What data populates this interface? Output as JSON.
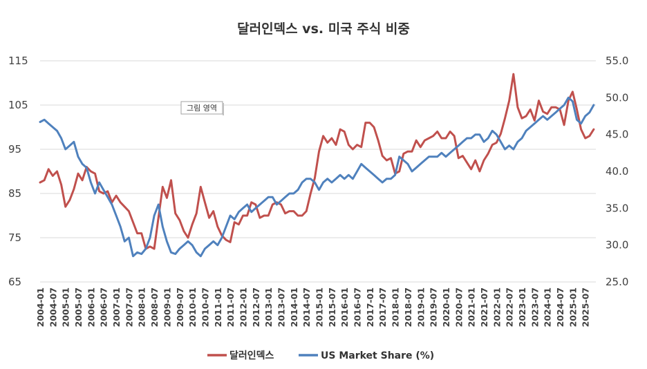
{
  "chart_data": {
    "type": "line",
    "title": "달러인덱스 vs. 미국 주식 비중",
    "tooltip": "그림 영역",
    "left_axis": {
      "ylim": [
        65,
        115
      ],
      "ticks": [
        "115",
        "105",
        "95",
        "85",
        "75",
        "65"
      ]
    },
    "right_axis": {
      "ylim": [
        25,
        55
      ],
      "ticks": [
        "55.0",
        "50.0",
        "45.0",
        "40.0",
        "35.0",
        "30.0",
        "25.0"
      ]
    },
    "x_ticks": [
      "2004-01",
      "2004-07",
      "2005-01",
      "2005-07",
      "2006-01",
      "2006-07",
      "2007-01",
      "2007-07",
      "2008-01",
      "2008-07",
      "2009-01",
      "2009-07",
      "2010-01",
      "2010-07",
      "2011-01",
      "2011-07",
      "2012-01",
      "2012-07",
      "2013-01",
      "2013-07",
      "2014-01",
      "2014-07",
      "2015-01",
      "2015-07",
      "2016-01",
      "2016-07",
      "2017-01",
      "2017-07",
      "2018-01",
      "2018-07",
      "2019-01",
      "2019-07",
      "2020-01",
      "2020-07",
      "2021-01",
      "2021-07",
      "2022-01",
      "2022-07",
      "2023-01",
      "2023-07",
      "2024-01",
      "2024-07",
      "2025-01",
      "2025-07"
    ],
    "grid": true,
    "legend_position": "bottom",
    "series": [
      {
        "name": "달러인덱스",
        "axis": "left",
        "color": "#c0504d",
        "points": [
          [
            "2004-01",
            87.5
          ],
          [
            "2004-03",
            88
          ],
          [
            "2004-05",
            90.5
          ],
          [
            "2004-07",
            89
          ],
          [
            "2004-09",
            90
          ],
          [
            "2004-11",
            87
          ],
          [
            "2005-01",
            82
          ],
          [
            "2005-03",
            83.5
          ],
          [
            "2005-05",
            86
          ],
          [
            "2005-07",
            89.5
          ],
          [
            "2005-09",
            88
          ],
          [
            "2005-11",
            91
          ],
          [
            "2006-01",
            90
          ],
          [
            "2006-03",
            89.5
          ],
          [
            "2006-05",
            85.5
          ],
          [
            "2006-07",
            85
          ],
          [
            "2006-09",
            85.5
          ],
          [
            "2006-11",
            83
          ],
          [
            "2007-01",
            84.5
          ],
          [
            "2007-03",
            83
          ],
          [
            "2007-05",
            82
          ],
          [
            "2007-07",
            81
          ],
          [
            "2007-09",
            78.5
          ],
          [
            "2007-11",
            76
          ],
          [
            "2008-01",
            76
          ],
          [
            "2008-03",
            72.5
          ],
          [
            "2008-05",
            73
          ],
          [
            "2008-07",
            72.5
          ],
          [
            "2008-09",
            79.5
          ],
          [
            "2008-11",
            86.5
          ],
          [
            "2009-01",
            84
          ],
          [
            "2009-03",
            88
          ],
          [
            "2009-05",
            80.5
          ],
          [
            "2009-07",
            79
          ],
          [
            "2009-09",
            76.5
          ],
          [
            "2009-11",
            75
          ],
          [
            "2010-01",
            78
          ],
          [
            "2010-03",
            80.5
          ],
          [
            "2010-05",
            86.5
          ],
          [
            "2010-07",
            83
          ],
          [
            "2010-09",
            79.5
          ],
          [
            "2010-11",
            81
          ],
          [
            "2011-01",
            77.5
          ],
          [
            "2011-03",
            75.5
          ],
          [
            "2011-05",
            74.5
          ],
          [
            "2011-07",
            74
          ],
          [
            "2011-09",
            78.5
          ],
          [
            "2011-11",
            78
          ],
          [
            "2012-01",
            80
          ],
          [
            "2012-03",
            80
          ],
          [
            "2012-05",
            83
          ],
          [
            "2012-07",
            82.5
          ],
          [
            "2012-09",
            79.5
          ],
          [
            "2012-11",
            80
          ],
          [
            "2013-01",
            80
          ],
          [
            "2013-03",
            82.5
          ],
          [
            "2013-05",
            83
          ],
          [
            "2013-07",
            82.5
          ],
          [
            "2013-09",
            80.5
          ],
          [
            "2013-11",
            81
          ],
          [
            "2014-01",
            81
          ],
          [
            "2014-03",
            80
          ],
          [
            "2014-05",
            80
          ],
          [
            "2014-07",
            81
          ],
          [
            "2014-09",
            85
          ],
          [
            "2014-11",
            88.5
          ],
          [
            "2015-01",
            94.5
          ],
          [
            "2015-03",
            98
          ],
          [
            "2015-05",
            96.5
          ],
          [
            "2015-07",
            97.5
          ],
          [
            "2015-09",
            96
          ],
          [
            "2015-11",
            99.5
          ],
          [
            "2016-01",
            99
          ],
          [
            "2016-03",
            96
          ],
          [
            "2016-05",
            95
          ],
          [
            "2016-07",
            96
          ],
          [
            "2016-09",
            95.5
          ],
          [
            "2016-11",
            101
          ],
          [
            "2017-01",
            101
          ],
          [
            "2017-03",
            100
          ],
          [
            "2017-05",
            97
          ],
          [
            "2017-07",
            93.5
          ],
          [
            "2017-09",
            92.5
          ],
          [
            "2017-11",
            93
          ],
          [
            "2018-01",
            89.5
          ],
          [
            "2018-03",
            90
          ],
          [
            "2018-05",
            94
          ],
          [
            "2018-07",
            94.5
          ],
          [
            "2018-09",
            94.5
          ],
          [
            "2018-11",
            97
          ],
          [
            "2019-01",
            95.5
          ],
          [
            "2019-03",
            97
          ],
          [
            "2019-05",
            97.5
          ],
          [
            "2019-07",
            98
          ],
          [
            "2019-09",
            99
          ],
          [
            "2019-11",
            97.5
          ],
          [
            "2020-01",
            97.5
          ],
          [
            "2020-03",
            99
          ],
          [
            "2020-05",
            98
          ],
          [
            "2020-07",
            93
          ],
          [
            "2020-09",
            93.5
          ],
          [
            "2020-11",
            92
          ],
          [
            "2021-01",
            90.5
          ],
          [
            "2021-03",
            92.5
          ],
          [
            "2021-05",
            90
          ],
          [
            "2021-07",
            92.5
          ],
          [
            "2021-09",
            94
          ],
          [
            "2021-11",
            96
          ],
          [
            "2022-01",
            96.5
          ],
          [
            "2022-03",
            98.5
          ],
          [
            "2022-05",
            102
          ],
          [
            "2022-07",
            106
          ],
          [
            "2022-09",
            112
          ],
          [
            "2022-11",
            104.5
          ],
          [
            "2023-01",
            102
          ],
          [
            "2023-03",
            102.5
          ],
          [
            "2023-05",
            104
          ],
          [
            "2023-07",
            101.5
          ],
          [
            "2023-09",
            106
          ],
          [
            "2023-11",
            103.5
          ],
          [
            "2024-01",
            103
          ],
          [
            "2024-03",
            104.5
          ],
          [
            "2024-05",
            104.5
          ],
          [
            "2024-07",
            104
          ],
          [
            "2024-09",
            100.5
          ],
          [
            "2024-11",
            106
          ],
          [
            "2025-01",
            108
          ],
          [
            "2025-03",
            104
          ],
          [
            "2025-05",
            99.5
          ],
          [
            "2025-07",
            97.5
          ],
          [
            "2025-09",
            98
          ],
          [
            "2025-11",
            99.5
          ]
        ]
      },
      {
        "name": "US Market Share (%)",
        "axis": "right",
        "color": "#4f81bd",
        "points": [
          [
            "2004-01",
            46.7
          ],
          [
            "2004-03",
            47
          ],
          [
            "2004-05",
            46.5
          ],
          [
            "2004-07",
            46
          ],
          [
            "2004-09",
            45.5
          ],
          [
            "2004-11",
            44.5
          ],
          [
            "2005-01",
            43
          ],
          [
            "2005-03",
            43.5
          ],
          [
            "2005-05",
            44
          ],
          [
            "2005-07",
            42
          ],
          [
            "2005-09",
            41
          ],
          [
            "2005-11",
            40.5
          ],
          [
            "2006-01",
            38.5
          ],
          [
            "2006-03",
            37
          ],
          [
            "2006-05",
            38.5
          ],
          [
            "2006-07",
            37.5
          ],
          [
            "2006-09",
            36.5
          ],
          [
            "2006-11",
            35.5
          ],
          [
            "2007-01",
            34
          ],
          [
            "2007-03",
            32.5
          ],
          [
            "2007-05",
            30.5
          ],
          [
            "2007-07",
            31
          ],
          [
            "2007-09",
            28.5
          ],
          [
            "2007-11",
            29
          ],
          [
            "2008-01",
            28.8
          ],
          [
            "2008-03",
            29.5
          ],
          [
            "2008-05",
            31
          ],
          [
            "2008-07",
            34
          ],
          [
            "2008-09",
            35.5
          ],
          [
            "2008-11",
            32.5
          ],
          [
            "2009-01",
            30.5
          ],
          [
            "2009-03",
            29
          ],
          [
            "2009-05",
            28.8
          ],
          [
            "2009-07",
            29.5
          ],
          [
            "2009-09",
            30
          ],
          [
            "2009-11",
            30.5
          ],
          [
            "2010-01",
            30
          ],
          [
            "2010-03",
            29
          ],
          [
            "2010-05",
            28.5
          ],
          [
            "2010-07",
            29.5
          ],
          [
            "2010-09",
            30
          ],
          [
            "2010-11",
            30.5
          ],
          [
            "2011-01",
            30
          ],
          [
            "2011-03",
            31
          ],
          [
            "2011-05",
            32.5
          ],
          [
            "2011-07",
            34
          ],
          [
            "2011-09",
            33.5
          ],
          [
            "2011-11",
            34.5
          ],
          [
            "2012-01",
            35
          ],
          [
            "2012-03",
            35.5
          ],
          [
            "2012-05",
            34.5
          ],
          [
            "2012-07",
            35
          ],
          [
            "2012-09",
            35.5
          ],
          [
            "2012-11",
            36
          ],
          [
            "2013-01",
            36.5
          ],
          [
            "2013-03",
            36.5
          ],
          [
            "2013-05",
            35.5
          ],
          [
            "2013-07",
            36
          ],
          [
            "2013-09",
            36.5
          ],
          [
            "2013-11",
            37
          ],
          [
            "2014-01",
            37
          ],
          [
            "2014-03",
            37.5
          ],
          [
            "2014-05",
            38.5
          ],
          [
            "2014-07",
            39
          ],
          [
            "2014-09",
            39
          ],
          [
            "2014-11",
            38.5
          ],
          [
            "2015-01",
            37.5
          ],
          [
            "2015-03",
            38.5
          ],
          [
            "2015-05",
            39
          ],
          [
            "2015-07",
            38.5
          ],
          [
            "2015-09",
            39
          ],
          [
            "2015-11",
            39.5
          ],
          [
            "2016-01",
            39
          ],
          [
            "2016-03",
            39.5
          ],
          [
            "2016-05",
            39
          ],
          [
            "2016-07",
            40
          ],
          [
            "2016-09",
            41
          ],
          [
            "2016-11",
            40.5
          ],
          [
            "2017-01",
            40
          ],
          [
            "2017-03",
            39.5
          ],
          [
            "2017-05",
            39
          ],
          [
            "2017-07",
            38.5
          ],
          [
            "2017-09",
            39
          ],
          [
            "2017-11",
            39
          ],
          [
            "2018-01",
            39.5
          ],
          [
            "2018-03",
            42
          ],
          [
            "2018-05",
            41.5
          ],
          [
            "2018-07",
            41
          ],
          [
            "2018-09",
            40
          ],
          [
            "2018-11",
            40.5
          ],
          [
            "2019-01",
            41
          ],
          [
            "2019-03",
            41.5
          ],
          [
            "2019-05",
            42
          ],
          [
            "2019-07",
            42
          ],
          [
            "2019-09",
            42
          ],
          [
            "2019-11",
            42.5
          ],
          [
            "2020-01",
            42
          ],
          [
            "2020-03",
            42.5
          ],
          [
            "2020-05",
            43
          ],
          [
            "2020-07",
            43.5
          ],
          [
            "2020-09",
            44
          ],
          [
            "2020-11",
            44.5
          ],
          [
            "2021-01",
            44.5
          ],
          [
            "2021-03",
            45
          ],
          [
            "2021-05",
            45
          ],
          [
            "2021-07",
            44
          ],
          [
            "2021-09",
            44.5
          ],
          [
            "2021-11",
            45.5
          ],
          [
            "2022-01",
            45
          ],
          [
            "2022-03",
            44
          ],
          [
            "2022-05",
            43
          ],
          [
            "2022-07",
            43.5
          ],
          [
            "2022-09",
            43
          ],
          [
            "2022-11",
            44
          ],
          [
            "2023-01",
            44.5
          ],
          [
            "2023-03",
            45.5
          ],
          [
            "2023-05",
            46
          ],
          [
            "2023-07",
            46.5
          ],
          [
            "2023-09",
            47
          ],
          [
            "2023-11",
            47.5
          ],
          [
            "2024-01",
            47
          ],
          [
            "2024-03",
            47.5
          ],
          [
            "2024-05",
            48
          ],
          [
            "2024-07",
            48.5
          ],
          [
            "2024-09",
            49
          ],
          [
            "2024-11",
            50
          ],
          [
            "2025-01",
            49.5
          ],
          [
            "2025-03",
            47
          ],
          [
            "2025-05",
            46.5
          ],
          [
            "2025-07",
            47.5
          ],
          [
            "2025-09",
            48
          ],
          [
            "2025-11",
            49
          ]
        ]
      }
    ]
  }
}
